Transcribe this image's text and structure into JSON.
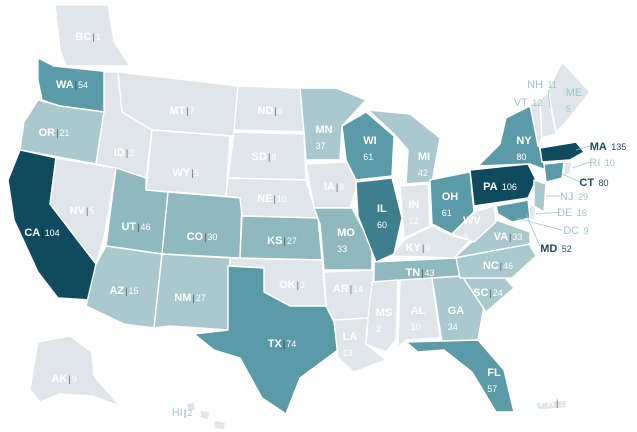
{
  "map": {
    "colors": {
      "lowest": "#dfe5e8",
      "low": "#a9c9cf",
      "mid": "#8fb8bf",
      "high": "#5b9aa7",
      "higher": "#3e7f8d",
      "highest": "#0f4a5e"
    },
    "states": [
      {
        "abbr": "BC",
        "value": "1"
      },
      {
        "abbr": "WA",
        "value": "54"
      },
      {
        "abbr": "OR",
        "value": "21"
      },
      {
        "abbr": "CA",
        "value": "104"
      },
      {
        "abbr": "NV",
        "value": "5"
      },
      {
        "abbr": "ID",
        "value": "2"
      },
      {
        "abbr": "MT",
        "value": "7"
      },
      {
        "abbr": "WY",
        "value": "5"
      },
      {
        "abbr": "UT",
        "value": "46"
      },
      {
        "abbr": "AZ",
        "value": "15"
      },
      {
        "abbr": "CO",
        "value": "30"
      },
      {
        "abbr": "NM",
        "value": "27"
      },
      {
        "abbr": "ND",
        "value": "6"
      },
      {
        "abbr": "SD",
        "value": "8"
      },
      {
        "abbr": "NE",
        "value": "10"
      },
      {
        "abbr": "KS",
        "value": "27"
      },
      {
        "abbr": "OK",
        "value": "3"
      },
      {
        "abbr": "TX",
        "value": "74"
      },
      {
        "abbr": "MN",
        "value": "37"
      },
      {
        "abbr": "IA",
        "value": "8"
      },
      {
        "abbr": "MO",
        "value": "33"
      },
      {
        "abbr": "AR",
        "value": "14"
      },
      {
        "abbr": "LA",
        "value": "13"
      },
      {
        "abbr": "WI",
        "value": "61"
      },
      {
        "abbr": "IL",
        "value": "60"
      },
      {
        "abbr": "MI",
        "value": "42"
      },
      {
        "abbr": "IN",
        "value": "12"
      },
      {
        "abbr": "OH",
        "value": "61"
      },
      {
        "abbr": "KY",
        "value": "9"
      },
      {
        "abbr": "TN",
        "value": "43"
      },
      {
        "abbr": "MS",
        "value": "3"
      },
      {
        "abbr": "AL",
        "value": "10"
      },
      {
        "abbr": "GA",
        "value": "34"
      },
      {
        "abbr": "FL",
        "value": "57"
      },
      {
        "abbr": "SC",
        "value": "24"
      },
      {
        "abbr": "NC",
        "value": "46"
      },
      {
        "abbr": "VA",
        "value": "33"
      },
      {
        "abbr": "WV",
        "value": "9"
      },
      {
        "abbr": "PA",
        "value": "106"
      },
      {
        "abbr": "NY",
        "value": "80"
      },
      {
        "abbr": "MA",
        "value": "135"
      },
      {
        "abbr": "NH",
        "value": "11"
      },
      {
        "abbr": "VT",
        "value": "12"
      },
      {
        "abbr": "ME",
        "value": "5"
      },
      {
        "abbr": "RI",
        "value": "10"
      },
      {
        "abbr": "CT",
        "value": "80"
      },
      {
        "abbr": "NJ",
        "value": "29"
      },
      {
        "abbr": "DE",
        "value": "18"
      },
      {
        "abbr": "DC",
        "value": "9"
      },
      {
        "abbr": "MD",
        "value": "52"
      },
      {
        "abbr": "AK",
        "value": "9"
      },
      {
        "abbr": "HI",
        "value": "2"
      },
      {
        "abbr": "PR",
        "value": "1"
      }
    ]
  }
}
